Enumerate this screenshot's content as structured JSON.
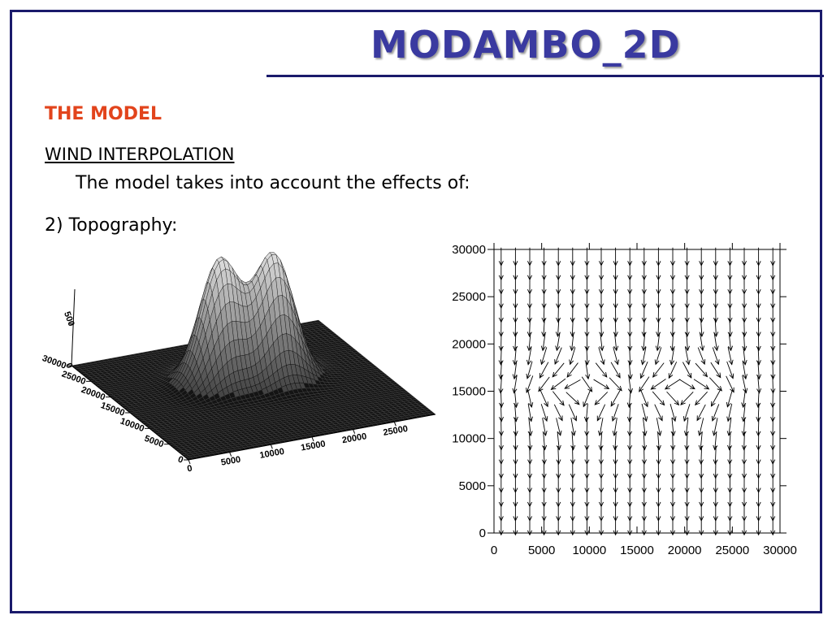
{
  "slide": {
    "title": "MODAMBO_2D",
    "section": "THE MODEL",
    "subtitle": "WIND INTERPOLATION",
    "intro": "The model takes into account the effects of:",
    "item": "2) Topography:"
  },
  "surface_plot": {
    "z_ticks": [
      "0",
      "500"
    ],
    "y_ticks": [
      "0",
      "5000",
      "10000",
      "15000",
      "20000",
      "25000",
      "30000"
    ],
    "x_ticks": [
      "0",
      "5000",
      "10000",
      "15000",
      "20000",
      "25000"
    ]
  },
  "chart_data": {
    "type": "vector-field",
    "title": "",
    "xlabel": "",
    "ylabel": "",
    "xlim": [
      0,
      30000
    ],
    "ylim": [
      0,
      30000
    ],
    "x_ticks": [
      0,
      5000,
      10000,
      15000,
      20000,
      25000,
      30000
    ],
    "y_ticks": [
      0,
      5000,
      10000,
      15000,
      20000,
      25000,
      30000
    ],
    "x_tick_labels": [
      "0",
      "5000",
      "10000",
      "15000",
      "20000",
      "25000",
      "30000"
    ],
    "y_tick_labels": [
      "0",
      "5000",
      "10000",
      "15000",
      "20000",
      "25000",
      "30000"
    ],
    "grid_columns": 20,
    "grid_rows": 20,
    "flow_direction": "southward",
    "obstacles": [
      {
        "x": 9500,
        "y": 15000
      },
      {
        "x": 19500,
        "y": 15000
      }
    ]
  },
  "colors": {
    "frame": "#1a1a6b",
    "title": "#3a3aa0",
    "section": "#e2441c"
  }
}
